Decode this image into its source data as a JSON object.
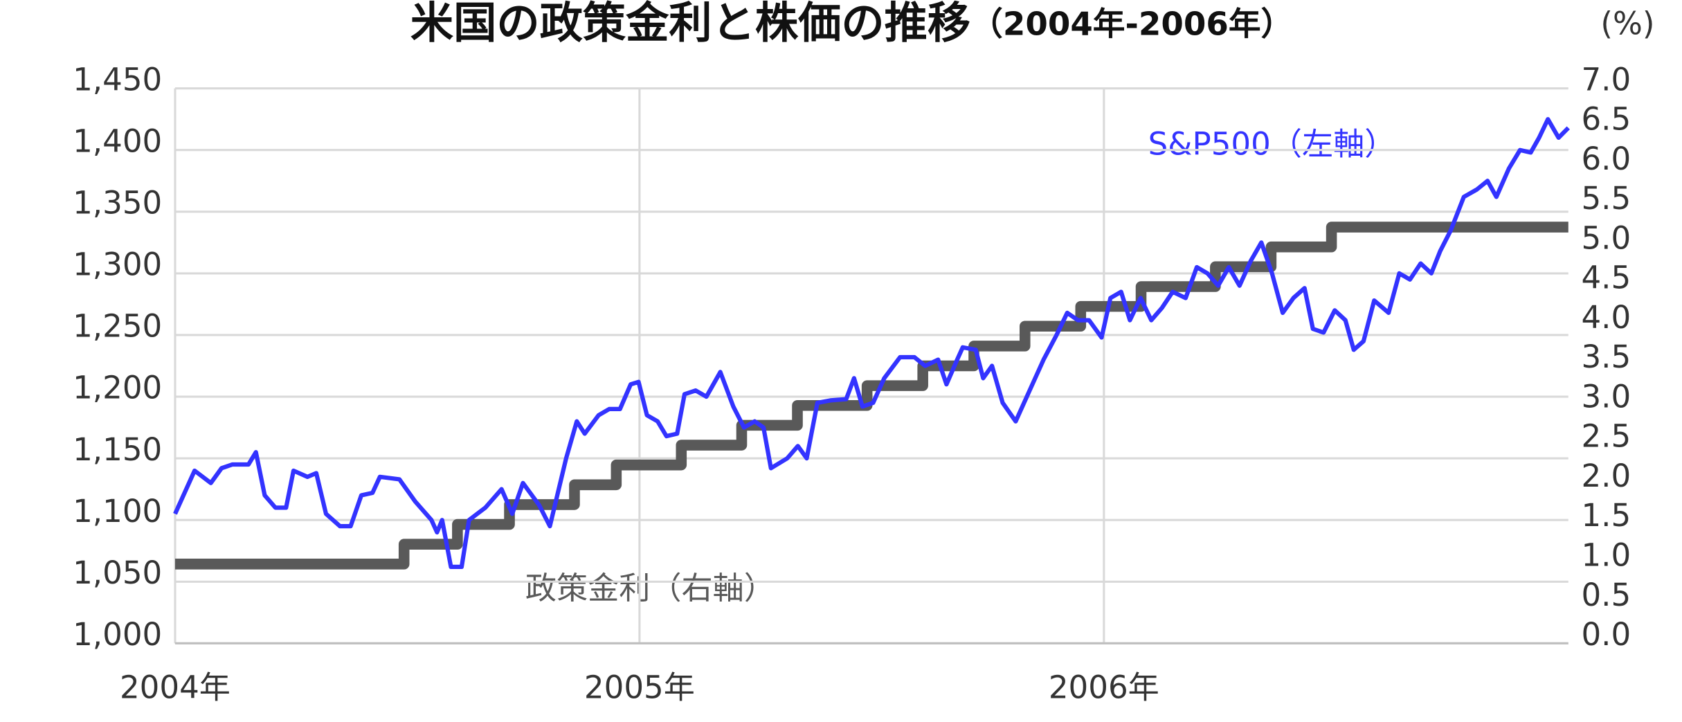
{
  "chart_data": {
    "type": "line",
    "title": "米国の政策金利と株価の推移",
    "title_period": "（2004年-2006年）",
    "y2_unit": "(%)",
    "annotations": [
      "S&P500（左軸）",
      "政策金利（右軸）"
    ],
    "xlim": [
      2004,
      2007
    ],
    "xticks": [
      {
        "value": 2004,
        "label": "2004年"
      },
      {
        "value": 2005,
        "label": "2005年"
      },
      {
        "value": 2006,
        "label": "2006年"
      }
    ],
    "ylim": [
      1000,
      1450
    ],
    "yticks": [
      {
        "value": 1000,
        "label": "1,000"
      },
      {
        "value": 1050,
        "label": "1,050"
      },
      {
        "value": 1100,
        "label": "1,100"
      },
      {
        "value": 1150,
        "label": "1,150"
      },
      {
        "value": 1200,
        "label": "1,200"
      },
      {
        "value": 1250,
        "label": "1,250"
      },
      {
        "value": 1300,
        "label": "1,300"
      },
      {
        "value": 1350,
        "label": "1,350"
      },
      {
        "value": 1400,
        "label": "1,400"
      },
      {
        "value": 1450,
        "label": "1,450"
      }
    ],
    "y2lim": [
      0,
      7
    ],
    "y2ticks": [
      {
        "value": 0,
        "label": "0.0"
      },
      0.5,
      {
        "value": 1,
        "label": "1.0"
      },
      1.5,
      {
        "value": 2,
        "label": "2.0"
      },
      2.5,
      {
        "value": 3,
        "label": "3.0"
      },
      3.5,
      {
        "value": 4,
        "label": "4.0"
      },
      4.5,
      {
        "value": 5,
        "label": "5.0"
      },
      5.5,
      {
        "value": 6,
        "label": "6.0"
      },
      6.5,
      {
        "value": 7,
        "label": "7.0"
      }
    ],
    "grid": true,
    "series": [
      {
        "name": "S&P500",
        "color": "#3333ff",
        "x": [
          2004.0,
          2004.042,
          2004.077,
          2004.1,
          2004.123,
          2004.158,
          2004.174,
          2004.193,
          2004.216,
          2004.239,
          2004.255,
          2004.285,
          2004.304,
          2004.325,
          2004.355,
          2004.378,
          2004.401,
          2004.425,
          2004.441,
          2004.483,
          2004.517,
          2004.552,
          2004.564,
          2004.575,
          2004.594,
          2004.617,
          2004.633,
          2004.668,
          2004.703,
          2004.726,
          2004.749,
          2004.784,
          2004.807,
          2004.842,
          2004.865,
          2004.882,
          2004.912,
          2004.935,
          2004.958,
          2004.981,
          2004.998,
          2005.016,
          2005.039,
          2005.058,
          2005.081,
          2005.097,
          2005.121,
          2005.144,
          2005.174,
          2005.202,
          2005.225,
          2005.248,
          2005.267,
          2005.283,
          2005.318,
          2005.341,
          2005.36,
          2005.383,
          2005.411,
          2005.445,
          2005.462,
          2005.48,
          2005.503,
          2005.527,
          2005.561,
          2005.592,
          2005.615,
          2005.643,
          2005.661,
          2005.684,
          2005.696,
          2005.724,
          2005.74,
          2005.759,
          2005.782,
          2005.81,
          2005.84,
          2005.87,
          2005.898,
          2005.921,
          2005.944,
          2005.968,
          2005.995,
          2006.014,
          2006.037,
          2006.056,
          2006.079,
          2006.102,
          2006.125,
          2006.148,
          2006.176,
          2006.2,
          2006.223,
          2006.246,
          2006.269,
          2006.292,
          2006.316,
          2006.339,
          2006.362,
          2006.385,
          2006.408,
          2006.432,
          2006.45,
          2006.473,
          2006.497,
          2006.52,
          2006.538,
          2006.559,
          2006.582,
          2006.613,
          2006.636,
          2006.659,
          2006.682,
          2006.705,
          2006.724,
          2006.747,
          2006.775,
          2006.803,
          2006.826,
          2006.845,
          2006.872,
          2006.896,
          2006.919,
          2006.937,
          2006.956,
          2006.979,
          2007.0
        ],
        "values": [
          1105,
          1140,
          1130,
          1142,
          1145,
          1145,
          1155,
          1120,
          1110,
          1110,
          1140,
          1135,
          1138,
          1105,
          1095,
          1095,
          1120,
          1122,
          1135,
          1133,
          1115,
          1100,
          1090,
          1100,
          1062,
          1062,
          1100,
          1110,
          1125,
          1105,
          1130,
          1112,
          1095,
          1150,
          1180,
          1170,
          1185,
          1190,
          1190,
          1210,
          1212,
          1185,
          1180,
          1168,
          1170,
          1202,
          1205,
          1200,
          1220,
          1192,
          1175,
          1180,
          1175,
          1142,
          1150,
          1160,
          1150,
          1195,
          1197,
          1198,
          1215,
          1192,
          1195,
          1215,
          1232,
          1232,
          1225,
          1230,
          1210,
          1230,
          1240,
          1238,
          1215,
          1225,
          1195,
          1180,
          1205,
          1230,
          1250,
          1268,
          1262,
          1262,
          1248,
          1280,
          1285,
          1262,
          1280,
          1262,
          1272,
          1285,
          1280,
          1305,
          1300,
          1290,
          1305,
          1290,
          1310,
          1325,
          1300,
          1268,
          1280,
          1288,
          1255,
          1252,
          1270,
          1262,
          1238,
          1245,
          1278,
          1268,
          1300,
          1295,
          1308,
          1300,
          1318,
          1335,
          1362,
          1368,
          1375,
          1362,
          1385,
          1400,
          1398,
          1410,
          1425,
          1410,
          1418
        ]
      },
      {
        "name": "政策金利",
        "color": "#595959",
        "axis": "y2",
        "step": true,
        "x": [
          2004.0,
          2004.493,
          2004.608,
          2004.72,
          2004.86,
          2004.95,
          2005.09,
          2005.22,
          2005.34,
          2005.49,
          2005.61,
          2005.72,
          2005.83,
          2005.95,
          2006.08,
          2006.24,
          2006.36,
          2006.49,
          2007.0
        ],
        "values": [
          1.0,
          1.25,
          1.5,
          1.75,
          2.0,
          2.25,
          2.5,
          2.75,
          3.0,
          3.25,
          3.5,
          3.75,
          4.0,
          4.25,
          4.5,
          4.75,
          5.0,
          5.25,
          5.25
        ]
      }
    ]
  }
}
